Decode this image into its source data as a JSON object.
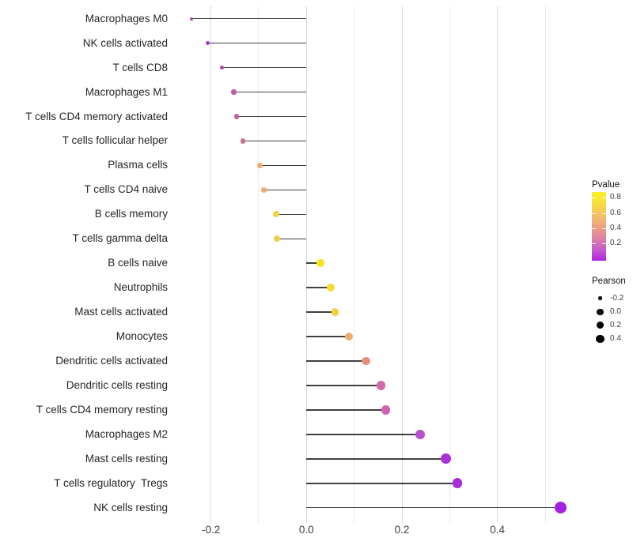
{
  "chart_data": {
    "type": "scatter",
    "variant": "lollipop",
    "title": "",
    "xlabel": "",
    "ylabel": "",
    "grid": true,
    "legend_position": "right",
    "xlim": [
      -0.28,
      0.575
    ],
    "categories": [
      "Macrophages M0",
      "NK cells activated",
      "T cells CD8",
      "Macrophages M1",
      "T cells CD4 memory activated",
      "T cells follicular helper",
      "Plasma cells",
      "T cells CD4 naive",
      "B cells memory",
      "T cells gamma delta",
      "B cells naive",
      "Neutrophils",
      "Mast cells activated",
      "Monocytes",
      "Dendritic cells activated",
      "Dendritic cells resting",
      "T cells CD4 memory resting",
      "Macrophages M2",
      "Mast cells resting",
      "T cells regulatory  Tregs",
      "NK cells resting"
    ],
    "series": [
      {
        "name": "Pearson",
        "values": [
          -0.241,
          -0.206,
          -0.177,
          -0.152,
          -0.146,
          -0.133,
          -0.097,
          -0.089,
          -0.064,
          -0.062,
          0.029,
          0.051,
          0.06,
          0.089,
          0.125,
          0.156,
          0.166,
          0.238,
          0.292,
          0.316,
          0.533
        ]
      }
    ],
    "point_colors": [
      "#AC3FC0",
      "#A838C8",
      "#B246B2",
      "#C25BA4",
      "#C6609E",
      "#CB6C96",
      "#F1AC6C",
      "#F1AA6E",
      "#F1D244",
      "#F0D146",
      "#F6E41F",
      "#F4DC35",
      "#F2D13F",
      "#EFAB6E",
      "#E98C80",
      "#D767AB",
      "#D360B0",
      "#B74FD2",
      "#AB32DB",
      "#A92CDC",
      "#A421DE"
    ],
    "stem_color": "#3f3f3f",
    "x_ticks": [
      {
        "value": -0.2,
        "label": "-0.2"
      },
      {
        "value": 0.0,
        "label": "0.0"
      },
      {
        "value": 0.2,
        "label": "0.2"
      },
      {
        "value": 0.4,
        "label": "0.4"
      }
    ],
    "x_minor_gridlines": [
      -0.1,
      0.1,
      0.3,
      0.5
    ]
  },
  "legends": {
    "pvalue": {
      "title": "Pvalue",
      "tick_labels": [
        "0.8",
        "0.6",
        "0.4",
        "0.2"
      ],
      "gradient_top_to_bottom": [
        "#FAF227",
        "#F8E13B",
        "#F5C95A",
        "#F0B175",
        "#E79590",
        "#D878AE",
        "#C455CD",
        "#AE22E5"
      ]
    },
    "pearson": {
      "title": "Pearson",
      "dot_color": "#000000",
      "entries": [
        {
          "label": "-0.2"
        },
        {
          "label": "0.0"
        },
        {
          "label": "0.2"
        },
        {
          "label": "0.4"
        }
      ]
    }
  }
}
